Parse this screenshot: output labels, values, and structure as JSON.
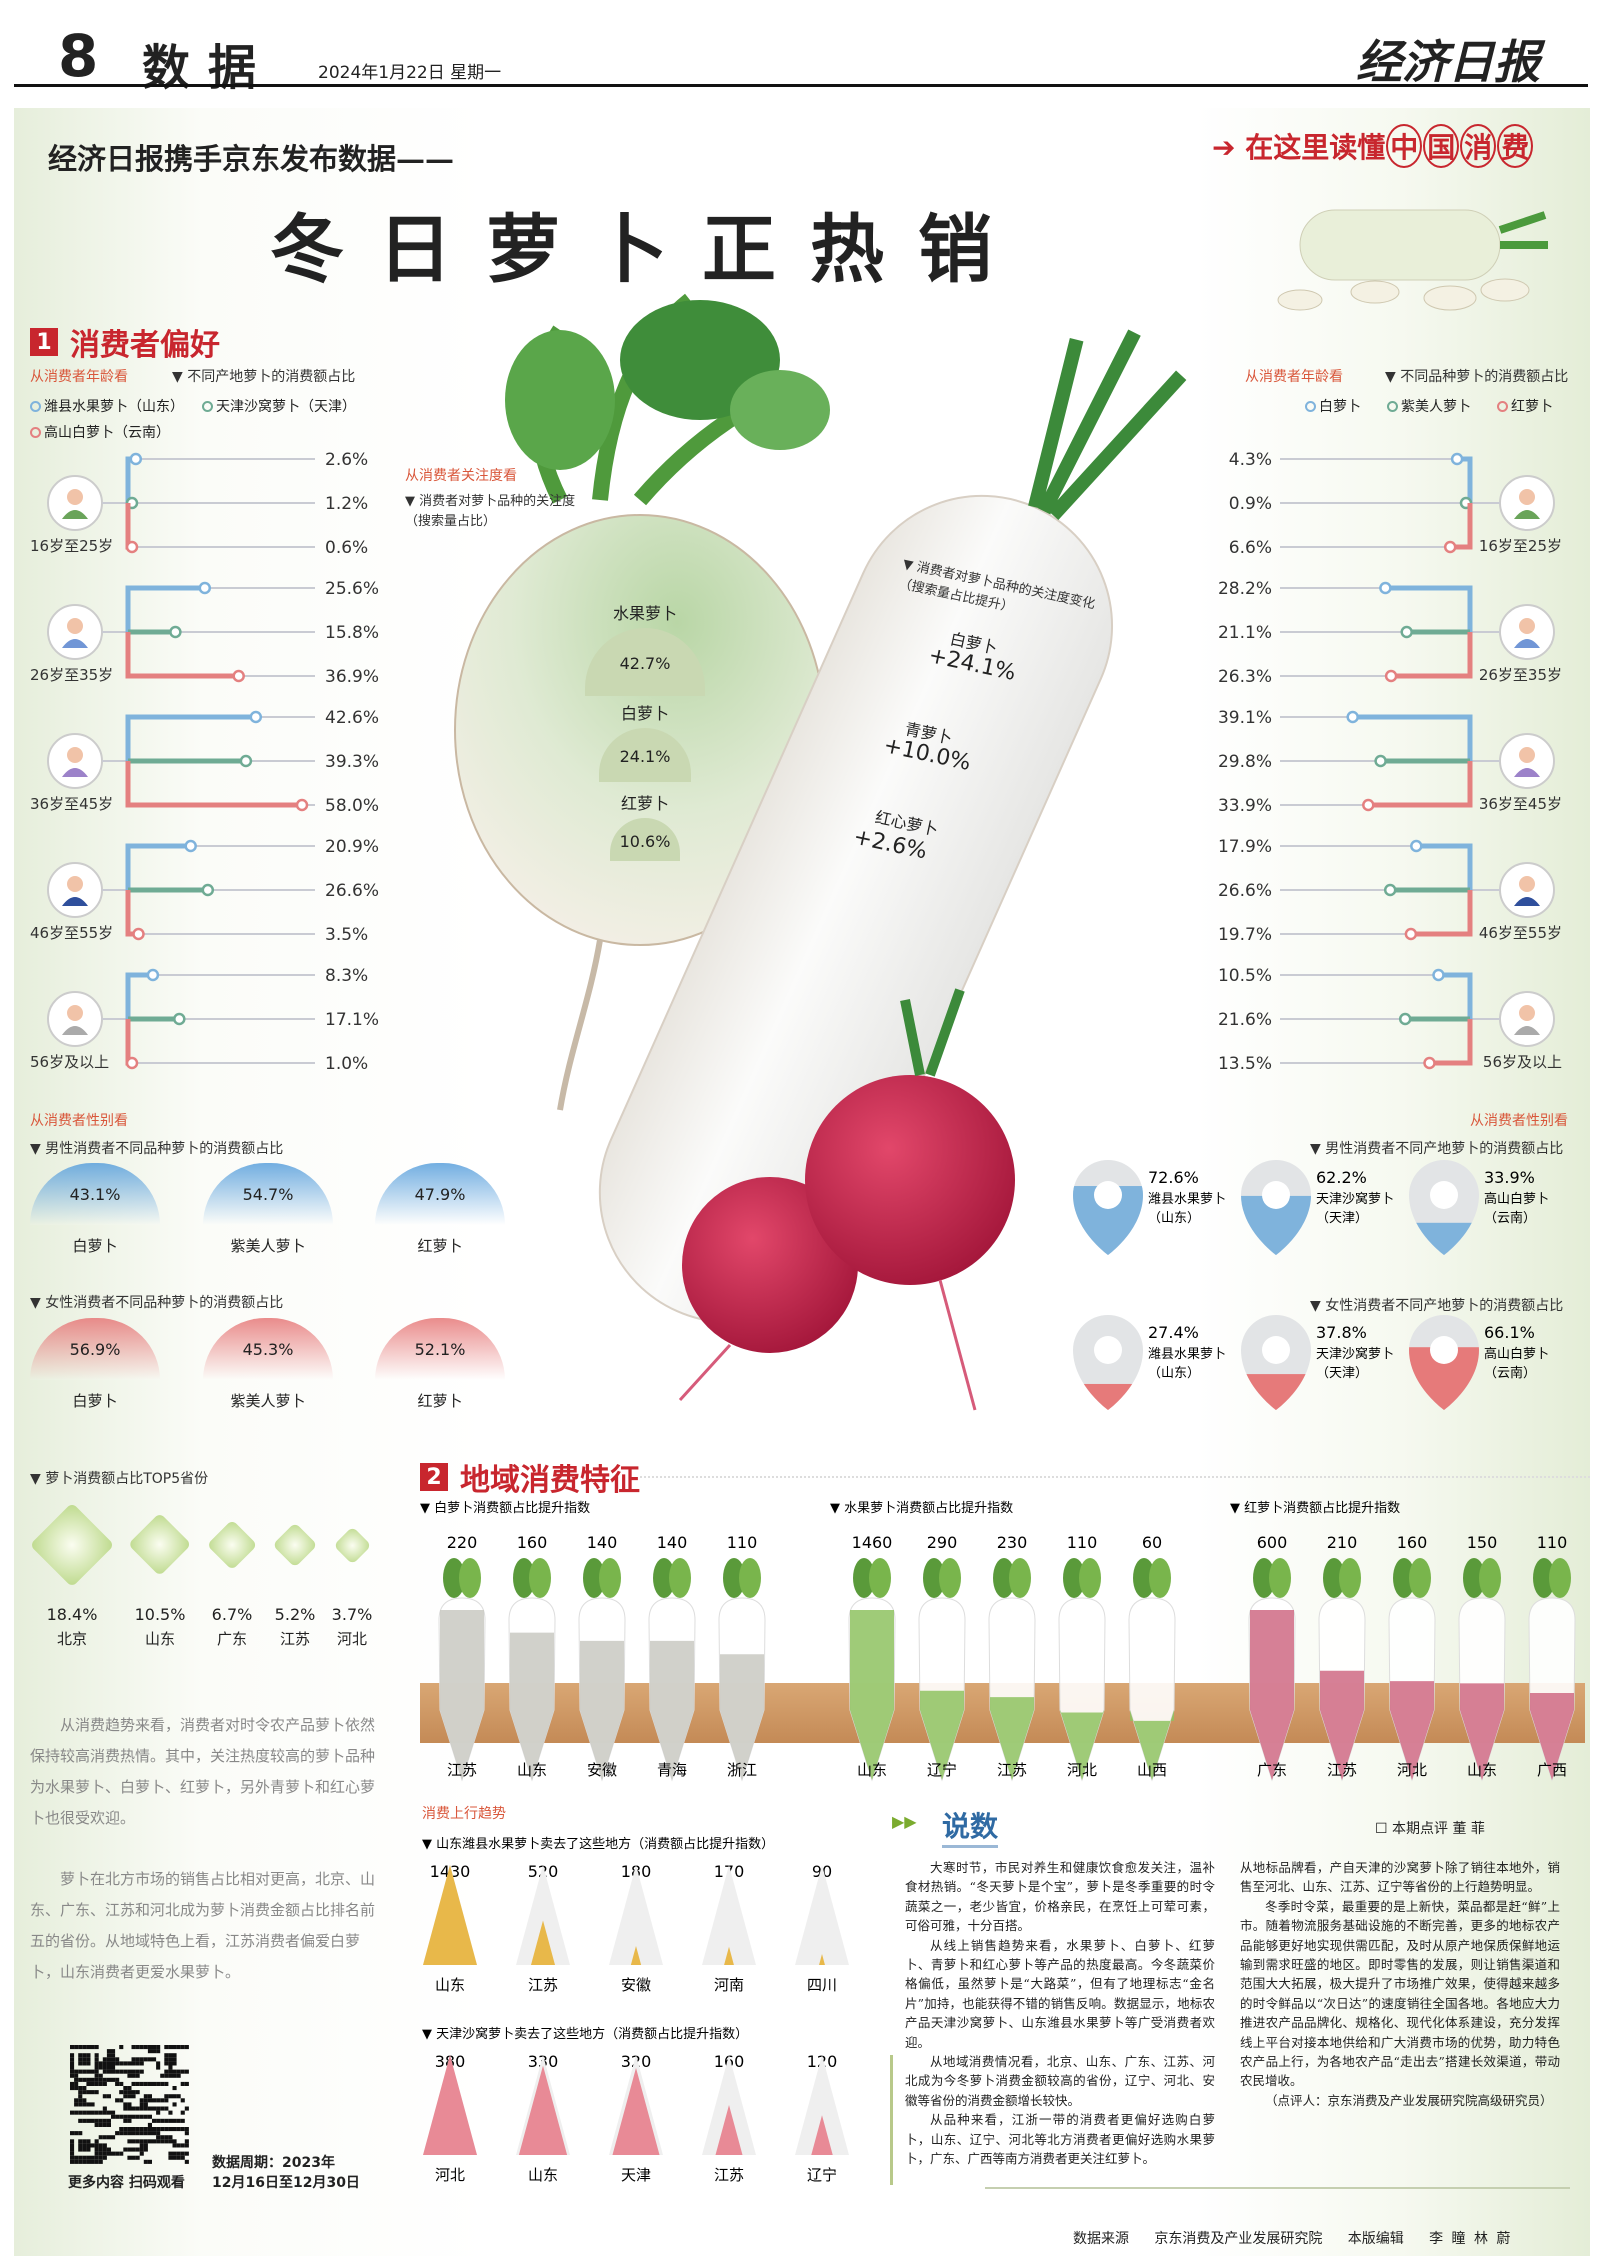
{
  "header": {
    "page_number": "8",
    "section": "数据",
    "date": "2024年1月22日  星期一",
    "masthead": "经济日报"
  },
  "headline": {
    "kicker": "经济日报携手京东发布数据——",
    "title": "冬日萝卜正热销",
    "tag_prefix": "在这里读懂",
    "tag_ringed": [
      "中",
      "国",
      "消",
      "费"
    ]
  },
  "colors": {
    "accent_red": "#c8262e",
    "blue": "#7fb3dc",
    "green": "#6fab94",
    "red": "#e48080",
    "soil": "#d9a774",
    "fruit_green": "#8ec260",
    "red_radish": "#cf6a84",
    "gold": "#e8b84a",
    "pink": "#e88a96"
  },
  "section1": {
    "number": "1",
    "title": "消费者偏好"
  },
  "age_left": {
    "heading": "从消费者年龄看",
    "subtitle": "不同产地萝卜的消费额占比",
    "legend": [
      "潍县水果萝卜（山东）",
      "天津沙窝萝卜（天津）",
      "高山白萝卜（云南）"
    ],
    "groups": [
      {
        "age": "16岁至25岁",
        "avatar": "young-woman-icon",
        "values": [
          2.6,
          1.2,
          0.6
        ],
        "labels": [
          "2.6%",
          "1.2%",
          "0.6%"
        ]
      },
      {
        "age": "26岁至35岁",
        "avatar": "young-man-icon",
        "values": [
          25.6,
          15.8,
          36.9
        ],
        "labels": [
          "25.6%",
          "15.8%",
          "36.9%"
        ]
      },
      {
        "age": "36岁至45岁",
        "avatar": "woman-icon",
        "values": [
          42.6,
          39.3,
          58.0
        ],
        "labels": [
          "42.6%",
          "39.3%",
          "58.0%"
        ]
      },
      {
        "age": "46岁至55岁",
        "avatar": "man-icon",
        "values": [
          20.9,
          26.6,
          3.5
        ],
        "labels": [
          "20.9%",
          "26.6%",
          "3.5%"
        ]
      },
      {
        "age": "56岁及以上",
        "avatar": "elder-icon",
        "values": [
          8.3,
          17.1,
          1.0
        ],
        "labels": [
          "8.3%",
          "17.1%",
          "1.0%"
        ]
      }
    ]
  },
  "age_right": {
    "heading": "从消费者年龄看",
    "subtitle": "不同品种萝卜的消费额占比",
    "legend": [
      "白萝卜",
      "紫美人萝卜",
      "红萝卜"
    ],
    "groups": [
      {
        "age": "16岁至25岁",
        "avatar": "young-woman-icon",
        "values": [
          4.3,
          0.9,
          6.6
        ],
        "labels": [
          "4.3%",
          "0.9%",
          "6.6%"
        ]
      },
      {
        "age": "26岁至35岁",
        "avatar": "young-man-icon",
        "values": [
          28.2,
          21.1,
          26.3
        ],
        "labels": [
          "28.2%",
          "21.1%",
          "26.3%"
        ]
      },
      {
        "age": "36岁至45岁",
        "avatar": "woman-icon",
        "values": [
          39.1,
          29.8,
          33.9
        ],
        "labels": [
          "39.1%",
          "29.8%",
          "33.9%"
        ]
      },
      {
        "age": "46岁至55岁",
        "avatar": "man-icon",
        "values": [
          17.9,
          26.6,
          19.7
        ],
        "labels": [
          "17.9%",
          "26.6%",
          "19.7%"
        ]
      },
      {
        "age": "56岁及以上",
        "avatar": "elder-icon",
        "values": [
          10.5,
          21.6,
          13.5
        ],
        "labels": [
          "10.5%",
          "21.6%",
          "13.5%"
        ]
      }
    ]
  },
  "attention": {
    "heading": "从消费者关注度看",
    "subtitle": "消费者对萝卜品种的关注度（搜索量占比）",
    "items": [
      {
        "name": "水果萝卜",
        "value": "42.7%"
      },
      {
        "name": "白萝卜",
        "value": "24.1%"
      },
      {
        "name": "红萝卜",
        "value": "10.6%"
      }
    ],
    "change_subtitle": "消费者对萝卜品种的关注度变化（搜索量占比提升）",
    "changes": [
      {
        "name": "白萝卜",
        "value": "+24.1%"
      },
      {
        "name": "青萝卜",
        "value": "+10.0%"
      },
      {
        "name": "红心萝卜",
        "value": "+2.6%"
      }
    ]
  },
  "gender_left": {
    "heading": "从消费者性别看",
    "male_title": "男性消费者不同品种萝卜的消费额占比",
    "male": [
      {
        "name": "白萝卜",
        "value": "43.1%"
      },
      {
        "name": "紫美人萝卜",
        "value": "54.7%"
      },
      {
        "name": "红萝卜",
        "value": "47.9%"
      }
    ],
    "female_title": "女性消费者不同品种萝卜的消费额占比",
    "female": [
      {
        "name": "白萝卜",
        "value": "56.9%"
      },
      {
        "name": "紫美人萝卜",
        "value": "45.3%"
      },
      {
        "name": "红萝卜",
        "value": "52.1%"
      }
    ]
  },
  "gender_right": {
    "heading": "从消费者性别看",
    "male_title": "男性消费者不同产地萝卜的消费额占比",
    "male": [
      {
        "name": "潍县水果萝卜",
        "origin": "（山东）",
        "value": "72.6%",
        "pct": 72.6
      },
      {
        "name": "天津沙窝萝卜",
        "origin": "（天津）",
        "value": "62.2%",
        "pct": 62.2
      },
      {
        "name": "高山白萝卜",
        "origin": "（云南）",
        "value": "33.9%",
        "pct": 33.9
      }
    ],
    "female_title": "女性消费者不同产地萝卜的消费额占比",
    "female": [
      {
        "name": "潍县水果萝卜",
        "origin": "（山东）",
        "value": "27.4%",
        "pct": 27.4
      },
      {
        "name": "天津沙窝萝卜",
        "origin": "（天津）",
        "value": "37.8%",
        "pct": 37.8
      },
      {
        "name": "高山白萝卜",
        "origin": "（云南）",
        "value": "66.1%",
        "pct": 66.1
      }
    ]
  },
  "top5": {
    "title": "萝卜消费额占比TOP5省份",
    "items": [
      {
        "province": "北京",
        "value": "18.4%",
        "pct": 18.4
      },
      {
        "province": "山东",
        "value": "10.5%",
        "pct": 10.5
      },
      {
        "province": "广东",
        "value": "6.7%",
        "pct": 6.7
      },
      {
        "province": "江苏",
        "value": "5.2%",
        "pct": 5.2
      },
      {
        "province": "河北",
        "value": "3.7%",
        "pct": 3.7
      }
    ]
  },
  "left_text": [
    "从消费趋势来看，消费者对时令农产品萝卜依然保持较高消费热情。其中，关注热度较高的萝卜品种为水果萝卜、白萝卜、红萝卜，另外青萝卜和红心萝卜也很受欢迎。",
    "萝卜在北方市场的销售占比相对更高，北京、山东、广东、江苏和河北成为萝卜消费金额占比排名前五的省份。从地域特色上看，江苏消费者偏爱白萝卜，山东消费者更爱水果萝卜。"
  ],
  "qr": {
    "caption": "更多内容 扫码观看"
  },
  "data_period": {
    "line1": "数据周期：2023年",
    "line2": "12月16日至12月30日"
  },
  "section2": {
    "number": "2",
    "title": "地域消费特征"
  },
  "chart_data": [
    {
      "type": "bar",
      "title": "白萝卜消费额占比提升指数",
      "categories": [
        "江苏",
        "山东",
        "安徽",
        "青海",
        "浙江"
      ],
      "values": [
        220,
        160,
        140,
        140,
        110
      ],
      "labels": [
        "220",
        "160",
        "140",
        "140",
        "110"
      ],
      "color": "#c9c9c2"
    },
    {
      "type": "bar",
      "title": "水果萝卜消费额占比提升指数",
      "categories": [
        "山东",
        "辽宁",
        "江苏",
        "河北",
        "山西"
      ],
      "values": [
        1460,
        290,
        230,
        110,
        60
      ],
      "labels": [
        "1460",
        "290",
        "230",
        "110",
        "60"
      ],
      "color": "#8ec260"
    },
    {
      "type": "bar",
      "title": "红萝卜消费额占比提升指数",
      "categories": [
        "广东",
        "江苏",
        "河北",
        "山东",
        "广西"
      ],
      "values": [
        600,
        210,
        160,
        150,
        110
      ],
      "labels": [
        "600",
        "210",
        "160",
        "150",
        "110"
      ],
      "color": "#cf6a84"
    },
    {
      "type": "bar",
      "title": "山东潍县水果萝卜卖去了这些地方（消费额占比提升指数）",
      "categories": [
        "山东",
        "江苏",
        "安徽",
        "河南",
        "四川"
      ],
      "values": [
        1430,
        520,
        180,
        170,
        90
      ],
      "labels": [
        "1430",
        "520",
        "180",
        "170",
        "90"
      ],
      "color": "#e8b84a"
    },
    {
      "type": "bar",
      "title": "天津沙窝萝卜卖去了这些地方（消费额占比提升指数）",
      "categories": [
        "河北",
        "山东",
        "天津",
        "江苏",
        "辽宁"
      ],
      "values": [
        380,
        330,
        320,
        160,
        120
      ],
      "labels": [
        "380",
        "330",
        "320",
        "160",
        "120"
      ],
      "color": "#e88a96"
    }
  ],
  "trend_heading": "消费上行趋势",
  "commentary": {
    "title": "说数",
    "byline": "本期点评  董  菲",
    "col1": [
      "大寒时节，市民对养生和健康饮食愈发关注，温补食材热销。“冬天萝卜是个宝”，萝卜是冬季重要的时令蔬菜之一，老少皆宜，价格亲民，在烹饪上可荤可素，可俗可雅，十分百搭。",
      "从线上销售趋势来看，水果萝卜、白萝卜、红萝卜、青萝卜和红心萝卜等产品的热度最高。今冬蔬菜价格偏低，虽然萝卜是“大路菜”，但有了地理标志“金名片”加持，也能获得不错的销售反响。数据显示，地标农产品天津沙窝萝卜、山东潍县水果萝卜等广受消费者欢迎。",
      "从地域消费情况看，北京、山东、广东、江苏、河北成为今冬萝卜消费金额较高的省份，辽宁、河北、安徽等省份的消费金额增长较快。",
      "从品种来看，江浙一带的消费者更偏好选购白萝卜，山东、辽宁、河北等北方消费者更偏好选购水果萝卜，广东、广西等南方消费者更关注红萝卜。"
    ],
    "col2": [
      "从地标品牌看，产自天津的沙窝萝卜除了销往本地外，销售至河北、山东、江苏、辽宁等省份的上行趋势明显。",
      "冬季时令菜，最重要的是上新快，菜品都是赶“鲜”上市。随着物流服务基础设施的不断完善，更多的地标农产品能够更好地实现供需匹配，及时从原产地保质保鲜地运输到需求旺盛的地区。即时零售的发展，则让销售渠道和范围大大拓展，极大提升了市场推广效果，使得越来越多的时令鲜品以“次日达”的速度销往全国各地。各地应大力推进农产品品牌化、规格化、现代化体系建设，充分发挥线上平台对接本地供给和广大消费市场的优势，助力特色农产品上行，为各地农产品“走出去”搭建长效渠道，带动农民增收。",
      "（点评人：京东消费及产业发展研究院高级研究员）"
    ]
  },
  "footer": {
    "source_label": "数据来源",
    "source": "京东消费及产业发展研究院",
    "editor_label": "本版编辑",
    "editors": "李  瞳  林  蔚"
  }
}
